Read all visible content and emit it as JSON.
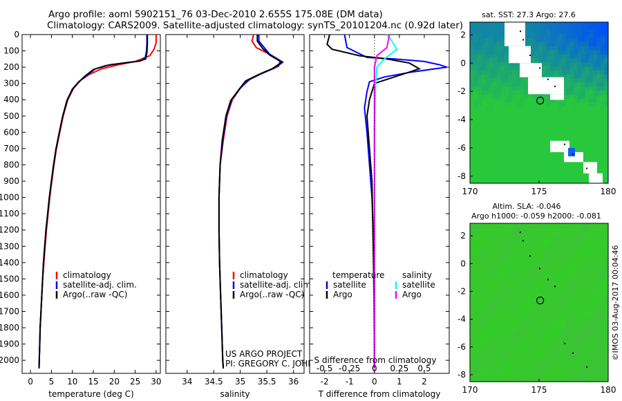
{
  "header": {
    "title_line1": "Argo profile: aoml 5902151_76 03-Dec-2010 2.655S 175.08E (DM data)",
    "title_line2": "Climatology: CARS2009. Satellite-adjusted climatology: synTS_20101204.nc (0.92d later)"
  },
  "colors": {
    "climatology": "#ff0000",
    "satellite": "#0000ff",
    "argo": "#000000",
    "sat_salinity": "#00ffff",
    "argo_salinity": "#ff00ff",
    "land_white": "#ffffff"
  },
  "chart_data": [
    {
      "type": "line",
      "title": "",
      "xlabel": "temperature (deg C)",
      "ylabel": "",
      "xlim": [
        -2,
        31
      ],
      "ylim": [
        2080,
        0
      ],
      "xticks": [
        0,
        5,
        10,
        15,
        20,
        25,
        30
      ],
      "yticks": [
        0,
        100,
        200,
        300,
        400,
        500,
        600,
        700,
        800,
        900,
        1000,
        1100,
        1200,
        1300,
        1400,
        1500,
        1600,
        1700,
        1800,
        1900,
        2000
      ],
      "legend": [
        "climatology",
        "satellite-adj. clim.",
        "Argo(..raw -QC)"
      ],
      "series": [
        {
          "name": "climatology",
          "color": "#ff0000",
          "points": [
            [
              30,
              0
            ],
            [
              30,
              50
            ],
            [
              29.5,
              90
            ],
            [
              28.5,
              130
            ],
            [
              25,
              165
            ],
            [
              21,
              185
            ],
            [
              17,
              210
            ],
            [
              14,
              245
            ],
            [
              12,
              280
            ],
            [
              10.3,
              330
            ],
            [
              8.9,
              400
            ],
            [
              7.8,
              500
            ],
            [
              7,
              600
            ],
            [
              6.2,
              700
            ],
            [
              5.6,
              800
            ],
            [
              5.1,
              900
            ],
            [
              4.6,
              1000
            ],
            [
              4.2,
              1100
            ],
            [
              3.8,
              1200
            ],
            [
              3.5,
              1300
            ],
            [
              3.2,
              1400
            ],
            [
              2.9,
              1500
            ],
            [
              2.7,
              1600
            ],
            [
              2.5,
              1700
            ],
            [
              2.3,
              1800
            ],
            [
              2.2,
              1900
            ],
            [
              2.1,
              2000
            ],
            [
              2.05,
              2050
            ]
          ]
        },
        {
          "name": "satellite-adj. clim.",
          "color": "#0000ff",
          "points": [
            [
              27.8,
              0
            ],
            [
              27.8,
              60
            ],
            [
              27.7,
              100
            ],
            [
              27.4,
              140
            ],
            [
              26.5,
              160
            ],
            [
              24,
              170
            ],
            [
              19,
              185
            ],
            [
              15.5,
              210
            ],
            [
              13.5,
              250
            ],
            [
              11.5,
              290
            ],
            [
              10.2,
              330
            ],
            [
              8.8,
              400
            ],
            [
              7.7,
              500
            ],
            [
              6.9,
              600
            ],
            [
              6.1,
              700
            ],
            [
              5.5,
              800
            ],
            [
              5,
              900
            ],
            [
              4.5,
              1000
            ],
            [
              4.1,
              1100
            ],
            [
              3.7,
              1200
            ],
            [
              3.4,
              1300
            ],
            [
              3.1,
              1400
            ],
            [
              2.9,
              1500
            ],
            [
              2.7,
              1600
            ],
            [
              2.5,
              1700
            ],
            [
              2.3,
              1800
            ],
            [
              2.2,
              1900
            ],
            [
              2.1,
              2000
            ],
            [
              2.05,
              2050
            ]
          ]
        },
        {
          "name": "Argo(..raw -QC)",
          "color": "#000000",
          "points": [
            [
              27.9,
              0
            ],
            [
              27.9,
              60
            ],
            [
              27.8,
              110
            ],
            [
              27.5,
              150
            ],
            [
              26,
              163
            ],
            [
              22,
              175
            ],
            [
              18,
              190
            ],
            [
              15,
              215
            ],
            [
              13,
              255
            ],
            [
              11.4,
              295
            ],
            [
              10,
              335
            ],
            [
              8.7,
              405
            ],
            [
              7.7,
              500
            ],
            [
              6.9,
              600
            ],
            [
              6.1,
              700
            ],
            [
              5.5,
              800
            ],
            [
              5,
              900
            ],
            [
              4.5,
              1000
            ],
            [
              4.1,
              1100
            ],
            [
              3.7,
              1200
            ],
            [
              3.4,
              1300
            ],
            [
              3.1,
              1400
            ],
            [
              2.9,
              1500
            ],
            [
              2.7,
              1600
            ],
            [
              2.5,
              1700
            ],
            [
              2.3,
              1800
            ],
            [
              2.2,
              1900
            ],
            [
              2.1,
              2000
            ],
            [
              2.05,
              2050
            ]
          ]
        }
      ]
    },
    {
      "type": "line",
      "title": "",
      "xlabel": "salinity",
      "xlim": [
        33.6,
        36.2
      ],
      "ylim": [
        2080,
        0
      ],
      "xticks": [
        34,
        34.5,
        35,
        35.5,
        36
      ],
      "legend": [
        "climatology",
        "satellite-adj. clim.",
        "Argo(..raw -QC)"
      ],
      "annotation": [
        "US ARGO PROJECT",
        "PI: GREGORY C. JOHNSON"
      ],
      "series": [
        {
          "name": "climatology",
          "color": "#ff0000",
          "points": [
            [
              35.25,
              0
            ],
            [
              35.22,
              40
            ],
            [
              35.3,
              80
            ],
            [
              35.55,
              120
            ],
            [
              35.75,
              160
            ],
            [
              35.72,
              195
            ],
            [
              35.45,
              230
            ],
            [
              35.2,
              270
            ],
            [
              35.02,
              320
            ],
            [
              34.85,
              400
            ],
            [
              34.75,
              500
            ],
            [
              34.68,
              650
            ],
            [
              34.62,
              800
            ],
            [
              34.6,
              1000
            ],
            [
              34.6,
              1200
            ],
            [
              34.61,
              1400
            ],
            [
              34.63,
              1600
            ],
            [
              34.65,
              1800
            ],
            [
              34.67,
              2000
            ],
            [
              34.68,
              2050
            ]
          ]
        },
        {
          "name": "satellite-adj. clim.",
          "color": "#0000ff",
          "points": [
            [
              35.35,
              0
            ],
            [
              35.35,
              40
            ],
            [
              35.45,
              80
            ],
            [
              35.55,
              120
            ],
            [
              35.8,
              170
            ],
            [
              35.65,
              205
            ],
            [
              35.4,
              240
            ],
            [
              35.15,
              280
            ],
            [
              35,
              330
            ],
            [
              34.84,
              400
            ],
            [
              34.74,
              500
            ],
            [
              34.67,
              650
            ],
            [
              34.62,
              800
            ],
            [
              34.6,
              1000
            ],
            [
              34.6,
              1200
            ],
            [
              34.61,
              1400
            ],
            [
              34.63,
              1600
            ],
            [
              34.65,
              1800
            ],
            [
              34.67,
              2000
            ],
            [
              34.68,
              2050
            ]
          ]
        },
        {
          "name": "Argo(..raw -QC)",
          "color": "#000000",
          "points": [
            [
              35.32,
              0
            ],
            [
              35.32,
              40
            ],
            [
              35.42,
              85
            ],
            [
              35.55,
              125
            ],
            [
              35.78,
              170
            ],
            [
              35.6,
              210
            ],
            [
              35.35,
              245
            ],
            [
              35.1,
              285
            ],
            [
              34.98,
              335
            ],
            [
              34.82,
              405
            ],
            [
              34.73,
              500
            ],
            [
              34.66,
              650
            ],
            [
              34.62,
              800
            ],
            [
              34.6,
              1000
            ],
            [
              34.6,
              1200
            ],
            [
              34.61,
              1400
            ],
            [
              34.63,
              1600
            ],
            [
              34.65,
              1800
            ],
            [
              34.67,
              2000
            ],
            [
              34.68,
              2050
            ]
          ]
        }
      ]
    },
    {
      "type": "line",
      "title": "",
      "xlabel": "T difference from climatology",
      "xlabel_top": "S difference from climatology",
      "xlim": [
        -2.6,
        3
      ],
      "ylim": [
        2080,
        0
      ],
      "xticks": [
        -2,
        -1,
        0,
        1,
        2
      ],
      "xticks_top": [
        -0.5,
        -0.25,
        0,
        0.25,
        0.5
      ],
      "xticklabels_top": [
        "-0.5",
        "-0.25",
        "0",
        "0.25",
        "0.5"
      ],
      "legend_temperature_title": "temperature",
      "legend_salinity_title": "salinity",
      "legend": [
        "satellite",
        "Argo",
        "satellite",
        "Argo"
      ],
      "series": [
        {
          "name": "temperature satellite",
          "color": "#0000ff",
          "points": [
            [
              -1.2,
              0
            ],
            [
              -1.1,
              80
            ],
            [
              -0.3,
              140
            ],
            [
              0.8,
              150
            ],
            [
              2,
              165
            ],
            [
              2.6,
              185
            ],
            [
              2.9,
              200
            ],
            [
              1.5,
              230
            ],
            [
              0.4,
              260
            ],
            [
              -0.2,
              290
            ],
            [
              -0.3,
              350
            ],
            [
              -0.4,
              450
            ],
            [
              -0.3,
              600
            ],
            [
              -0.2,
              800
            ],
            [
              -0.1,
              1000
            ],
            [
              -0.05,
              1200
            ],
            [
              0,
              1500
            ],
            [
              0,
              2050
            ]
          ]
        },
        {
          "name": "temperature Argo",
          "color": "#000000",
          "points": [
            [
              -1.8,
              0
            ],
            [
              -1.9,
              60
            ],
            [
              -1.7,
              90
            ],
            [
              -0.6,
              130
            ],
            [
              0.5,
              150
            ],
            [
              1.4,
              175
            ],
            [
              1.8,
              210
            ],
            [
              1.3,
              235
            ],
            [
              0.8,
              260
            ],
            [
              0,
              300
            ],
            [
              -0.2,
              400
            ],
            [
              -0.3,
              500
            ],
            [
              -0.2,
              700
            ],
            [
              -0.1,
              900
            ],
            [
              -0.05,
              1300
            ],
            [
              -0.02,
              1600
            ],
            [
              0,
              2050
            ]
          ]
        },
        {
          "name": "salinity satellite",
          "color": "#00ffff",
          "points": [
            [
              0.5,
              0
            ],
            [
              0.7,
              40
            ],
            [
              0.9,
              90
            ],
            [
              0.4,
              150
            ],
            [
              0.1,
              200
            ],
            [
              0.05,
              300
            ],
            [
              0,
              600
            ],
            [
              0,
              2050
            ]
          ]
        },
        {
          "name": "salinity Argo",
          "color": "#ff00ff",
          "points": [
            [
              0.6,
              0
            ],
            [
              0.55,
              40
            ],
            [
              0.5,
              80
            ],
            [
              0.1,
              130
            ],
            [
              0,
              200
            ],
            [
              0,
              2050
            ]
          ]
        }
      ]
    },
    {
      "type": "heatmap",
      "title": "sat. SST: 27.3 Argo: 27.6",
      "xlim": [
        170,
        180
      ],
      "ylim": [
        -8.5,
        2.9
      ],
      "xticks": [
        170,
        175,
        180
      ],
      "yticks": [
        2,
        0,
        -2,
        -4,
        -6,
        -8
      ],
      "marker": {
        "lon": 175.08,
        "lat": -2.655
      }
    },
    {
      "type": "heatmap",
      "title_line1": "Altim. SLA: -0.046",
      "title_line2": "Argo h1000: -0.059 h2000: -0.081",
      "xlim": [
        170,
        180
      ],
      "ylim": [
        -8.5,
        2.9
      ],
      "xticks": [
        170,
        175,
        180
      ],
      "yticks": [
        2,
        0,
        -2,
        -4,
        -6,
        -8
      ],
      "marker": {
        "lon": 175.08,
        "lat": -2.655
      },
      "side_label": "©IMOS 03-Aug-2017 00:04:46"
    }
  ]
}
